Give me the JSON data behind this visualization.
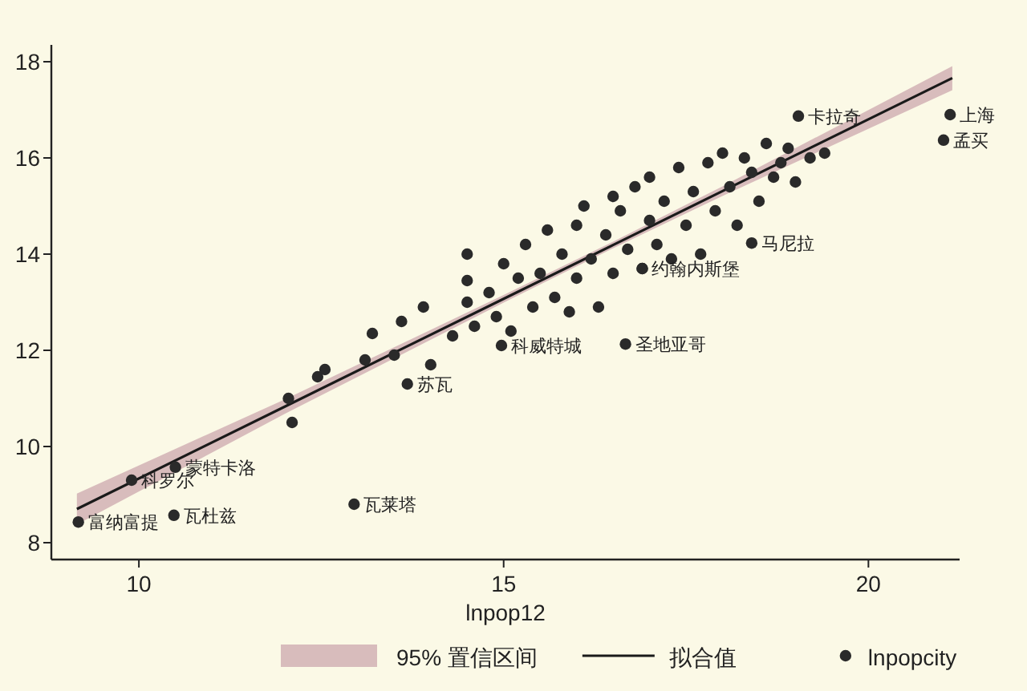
{
  "chart_data": {
    "type": "scatter",
    "xlabel": "lnpop12",
    "xlim": [
      8.8,
      21.25
    ],
    "ylim": [
      7.65,
      18.35
    ],
    "xticks": [
      10,
      15,
      20
    ],
    "yticks": [
      8,
      10,
      12,
      14,
      16,
      18
    ],
    "grid": false,
    "legend": "bottom",
    "marker": "circle",
    "series": [
      {
        "name": "拟合值",
        "type": "line",
        "marker": "none",
        "color": "#1a1a1a",
        "x": [
          9.15,
          12,
          15,
          16.5,
          18,
          21.15
        ],
        "values": [
          8.7,
          10.83,
          13.07,
          14.19,
          15.31,
          17.66
        ],
        "lower": [
          8.38,
          10.68,
          12.99,
          14.12,
          15.21,
          17.41
        ],
        "upper": [
          9.02,
          10.98,
          13.15,
          14.26,
          15.41,
          17.91
        ]
      },
      {
        "name": "lnpopcity",
        "color": "#2a2a2a",
        "x": [
          9.17,
          10.48,
          9.9,
          10.5,
          12.95,
          21.12,
          21.03,
          19.04,
          18.4,
          16.67,
          14.97,
          13.68,
          16.9,
          12.05,
          12.1,
          12.45,
          12.55,
          13.1,
          13.2,
          13.5,
          13.6,
          13.9,
          14.0,
          14.3,
          14.5,
          14.5,
          14.5,
          14.6,
          14.8,
          14.9,
          15.0,
          15.1,
          15.2,
          15.3,
          15.4,
          15.5,
          15.6,
          15.7,
          15.8,
          15.9,
          16.0,
          16.0,
          16.1,
          16.2,
          16.3,
          16.4,
          16.5,
          16.5,
          16.6,
          16.7,
          16.8,
          16.9,
          17.0,
          17.0,
          17.1,
          17.2,
          17.3,
          17.4,
          17.5,
          17.6,
          17.7,
          17.8,
          17.9,
          18.0,
          18.1,
          18.2,
          18.3,
          18.4,
          18.5,
          18.6,
          18.7,
          18.8,
          18.9,
          19.0,
          19.2,
          19.4
        ],
        "values": [
          8.43,
          8.57,
          9.3,
          9.57,
          8.8,
          16.9,
          16.37,
          16.87,
          14.23,
          12.13,
          12.1,
          11.3,
          13.7,
          11.0,
          10.5,
          11.45,
          11.6,
          11.8,
          12.35,
          11.9,
          12.6,
          12.9,
          11.7,
          12.3,
          14.0,
          13.45,
          13.0,
          12.5,
          13.2,
          12.7,
          13.8,
          12.4,
          13.5,
          14.2,
          12.9,
          13.6,
          14.5,
          13.1,
          14.0,
          12.8,
          14.6,
          13.5,
          15.0,
          13.9,
          12.9,
          14.4,
          15.2,
          13.6,
          14.9,
          14.1,
          15.4,
          13.7,
          14.7,
          15.6,
          14.2,
          15.1,
          13.9,
          15.8,
          14.6,
          15.3,
          14.0,
          15.9,
          14.9,
          16.1,
          15.4,
          14.6,
          16.0,
          15.7,
          15.1,
          16.3,
          15.6,
          15.9,
          16.2,
          15.5,
          16.0,
          16.1
        ]
      }
    ],
    "annotations": [
      "95% 置信区间",
      {
        "text": "富纳富提",
        "x": 9.17,
        "y": 8.43
      },
      {
        "text": "瓦杜兹",
        "x": 10.48,
        "y": 8.57
      },
      {
        "text": "科罗尔",
        "x": 9.9,
        "y": 9.3
      },
      {
        "text": "蒙特卡洛",
        "x": 10.5,
        "y": 9.57
      },
      {
        "text": "瓦莱塔",
        "x": 12.95,
        "y": 8.8
      },
      {
        "text": "上海",
        "x": 21.12,
        "y": 16.9
      },
      {
        "text": "孟买",
        "x": 21.03,
        "y": 16.37
      },
      {
        "text": "卡拉奇",
        "x": 19.04,
        "y": 16.87
      },
      {
        "text": "马尼拉",
        "x": 18.4,
        "y": 14.23
      },
      {
        "text": "圣地亚哥",
        "x": 16.67,
        "y": 12.13
      },
      {
        "text": "科威特城",
        "x": 14.97,
        "y": 12.1
      },
      {
        "text": "苏瓦",
        "x": 13.68,
        "y": 11.3
      },
      {
        "text": "约翰内斯堡",
        "x": 16.9,
        "y": 13.7
      }
    ]
  }
}
